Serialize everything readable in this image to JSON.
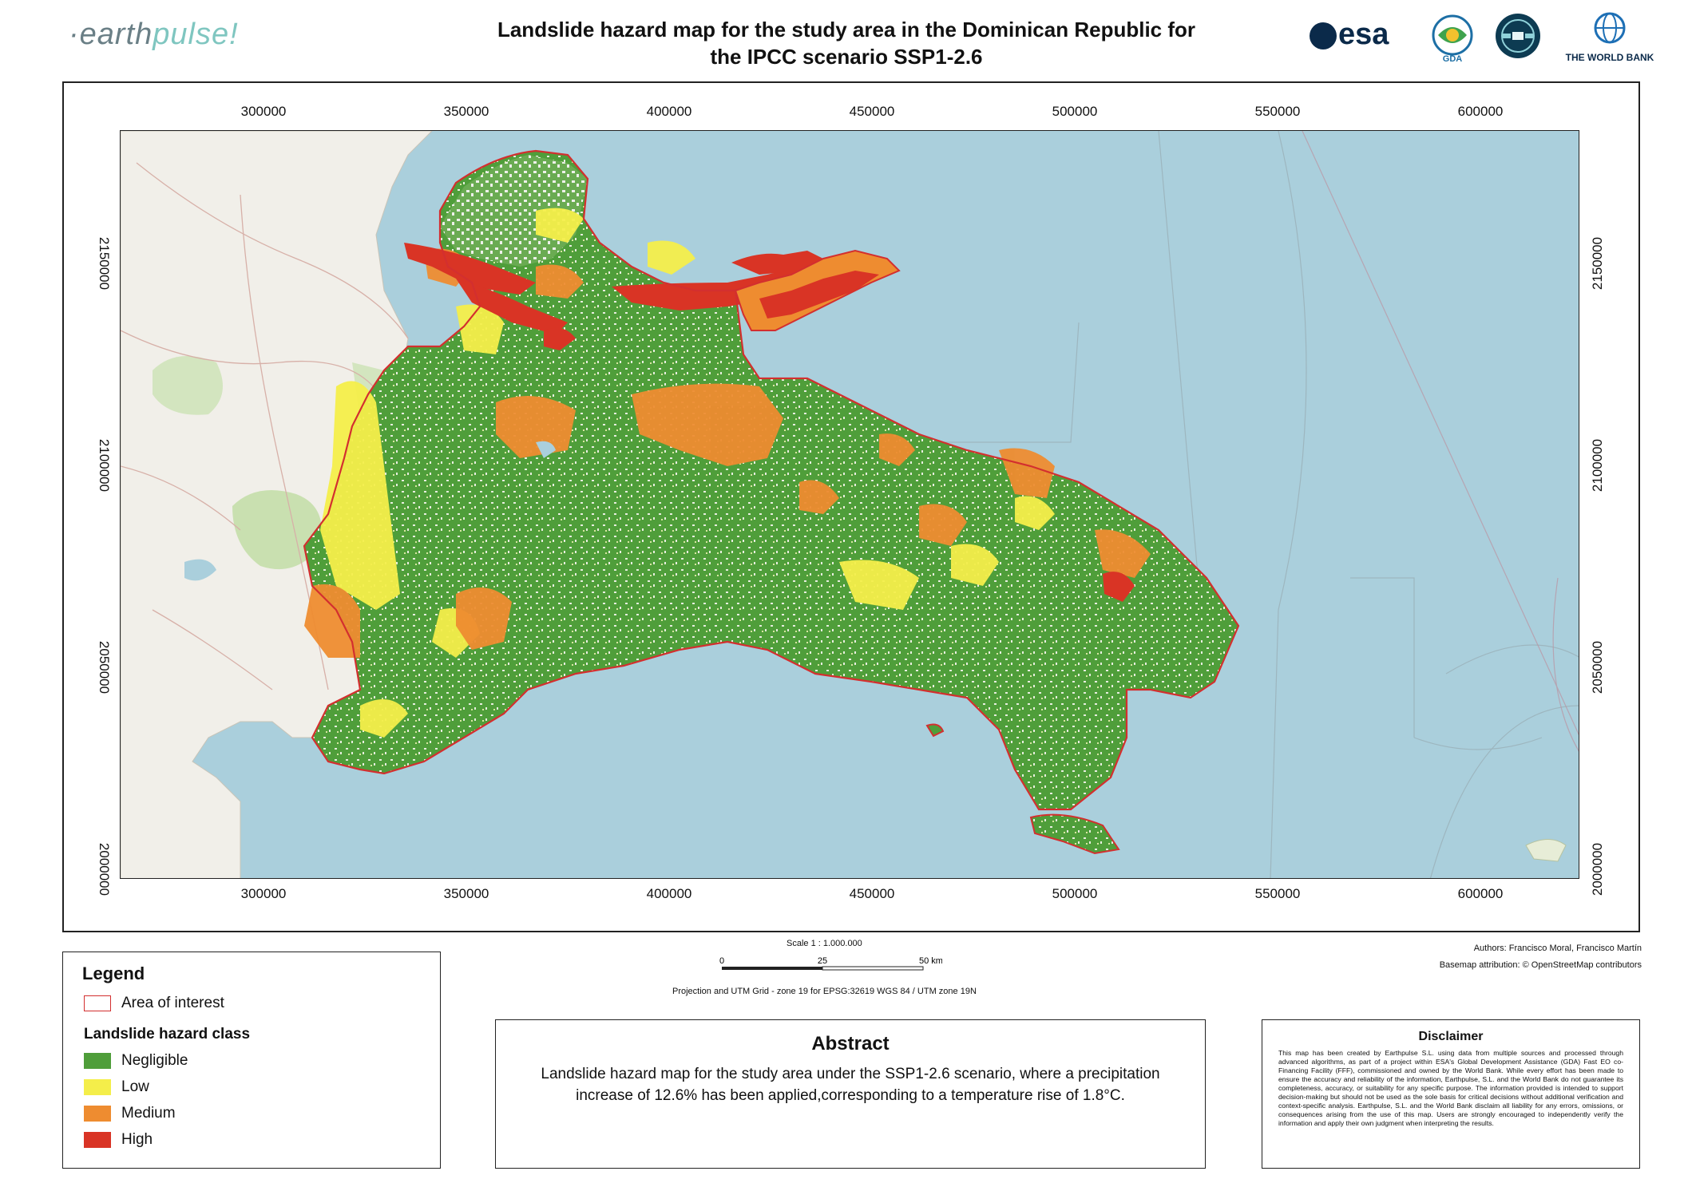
{
  "header": {
    "brand_prefix": "·earth",
    "brand_suffix": "pulse!",
    "title_line1": "Landslide hazard map for the study area in the Dominican Republic for",
    "title_line2": "the IPCC scenario SSP1-2.6",
    "logos": {
      "esa": "esa",
      "gda": "GDA",
      "world_bank": "THE WORLD BANK"
    }
  },
  "map": {
    "x_ticks": [
      "300000",
      "350000",
      "400000",
      "450000",
      "500000",
      "550000",
      "600000"
    ],
    "y_ticks": [
      "2150000",
      "2100000",
      "2050000",
      "2000000"
    ],
    "colors": {
      "sea": "#aacfdc",
      "land_base": "#f0eeea",
      "aoi_outline": "#d32f2f",
      "negligible": "#4f9e3a",
      "low": "#f4ee4a",
      "medium": "#ee8c30",
      "high": "#d93425"
    }
  },
  "scale": {
    "text": "Scale 1 : 1.000.000",
    "labels": [
      "0",
      "25",
      "50 km"
    ],
    "projection": "Projection and UTM Grid - zone 19 for EPSG:32619 WGS 84 / UTM zone 19N"
  },
  "credits": {
    "authors": "Authors: Francisco Moral, Francisco Martín",
    "basemap": "Basemap attribution:  © OpenStreetMap contributors"
  },
  "legend": {
    "title": "Legend",
    "aoi_label": "Area of interest",
    "class_title": "Landslide hazard class",
    "classes": [
      {
        "label": "Negligible",
        "color": "#4f9e3a"
      },
      {
        "label": "Low",
        "color": "#f4ee4a"
      },
      {
        "label": "Medium",
        "color": "#ee8c30"
      },
      {
        "label": "High",
        "color": "#d93425"
      }
    ]
  },
  "abstract": {
    "title": "Abstract",
    "text": "Landslide hazard map for the study area under the SSP1-2.6 scenario, where a precipitation increase of 12.6% has been applied,corresponding to a temperature rise of 1.8°C."
  },
  "disclaimer": {
    "title": "Disclaimer",
    "text": "This map has been created by Earthpulse S.L. using data from multiple sources and processed through advanced algorithms, as part of a project within ESA's Global Development Assistance (GDA) Fast EO co-Financing Facility (FFF), commissioned and owned by the World Bank. While every effort has been made to ensure the accuracy and reliability of the information, Earthpulse, S.L. and the World Bank do not guarantee its completeness, accuracy, or suitability for any specific purpose. The information provided is intended to support decision-making but should not be used as the sole basis for critical decisions without additional verification and context-specific analysis. Earthpulse, S.L. and the World Bank disclaim all liability for any errors, omissions, or consequences arising from the use of this map. Users are strongly encouraged to independently verify the information and apply their own judgment when interpreting the results."
  }
}
